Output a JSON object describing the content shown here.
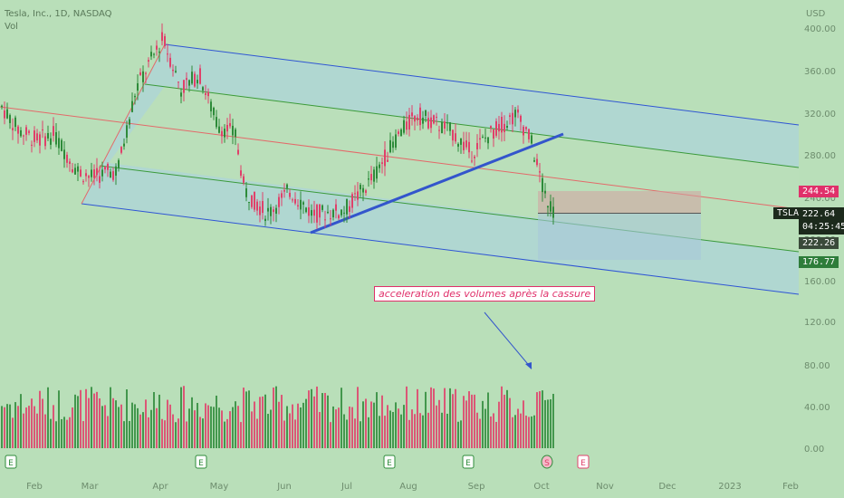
{
  "header": {
    "symbol_line": "Tesla, Inc., 1D, NASDAQ",
    "volume_label": "Vol",
    "currency": "USD"
  },
  "chart_data": {
    "type": "candlestick",
    "price_ticks": [
      "400.00",
      "360.00",
      "320.00",
      "280.00",
      "240.00",
      "200.00",
      "160.00",
      "120.00"
    ],
    "volume_ticks": [
      "80.00",
      "40.00",
      "0.00"
    ],
    "x_ticks": [
      "Feb",
      "Mar",
      "Apr",
      "May",
      "Jun",
      "Jul",
      "Aug",
      "Sep",
      "Oct",
      "Nov",
      "Dec",
      "2023",
      "Feb"
    ],
    "price_range": [
      105,
      428
    ],
    "tags": {
      "red_level": "244.54",
      "ticker": "TSLA",
      "last_price": "222.64",
      "countdown": "04:25:45",
      "mid_level": "222.26",
      "green_level": "176.77"
    },
    "annotation": "acceleration des volumes après la cassure",
    "event_markers": [
      "E",
      "E",
      "E",
      "E",
      "S",
      "E"
    ],
    "colors": {
      "up": "#2e8b3a",
      "down": "#e0406a",
      "channel_line": "#2f55d4",
      "mid_line": "#e36a6a",
      "inner_line": "#3a9a3a",
      "trendline": "#3355cc",
      "tag_red": "#e0306a",
      "tag_dark": "#1c2a1c",
      "tag_green": "#2e7d3a",
      "annotation_border": "#e0306a"
    }
  }
}
